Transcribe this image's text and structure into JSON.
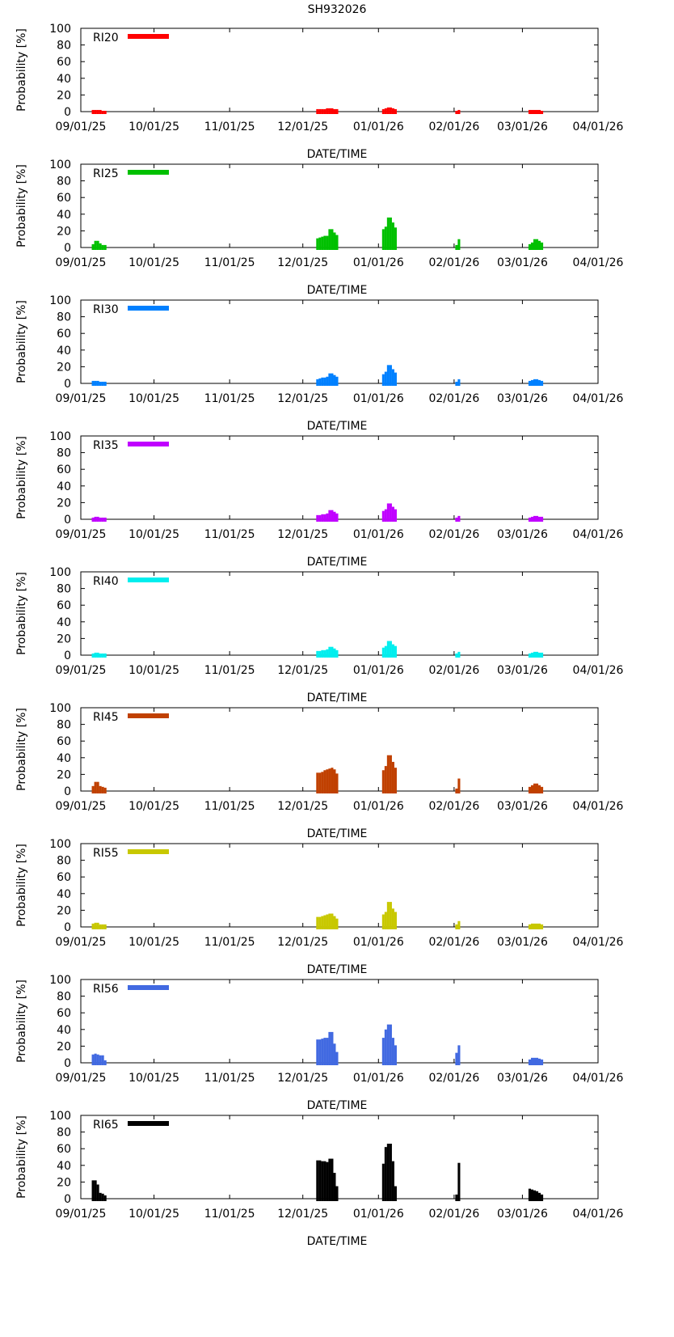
{
  "title": "SH932026",
  "chart_data": {
    "type": "bar",
    "ylabel": "Probability [%]",
    "xlabel": "DATE/TIME",
    "ylim": [
      0,
      100
    ],
    "yticks": [
      "0",
      "20",
      "40",
      "60",
      "80",
      "100"
    ],
    "x_start": "2025-09-01",
    "x_end": "2026-04-01",
    "xticks": [
      {
        "date": "2025-09-01",
        "label": "09/01/25"
      },
      {
        "date": "2025-10-01",
        "label": "10/01/25"
      },
      {
        "date": "2025-11-01",
        "label": "11/01/25"
      },
      {
        "date": "2025-12-01",
        "label": "12/01/25"
      },
      {
        "date": "2026-01-01",
        "label": "01/01/26"
      },
      {
        "date": "2026-02-01",
        "label": "02/01/26"
      },
      {
        "date": "2026-03-01",
        "label": "03/01/26"
      },
      {
        "date": "2026-04-01",
        "label": "04/01/26"
      }
    ],
    "days": [
      5,
      6,
      7,
      8,
      9,
      10,
      97,
      98,
      99,
      100,
      101,
      102,
      103,
      104,
      105,
      124,
      125,
      126,
      127,
      128,
      129,
      154,
      155,
      184,
      185,
      186,
      187,
      188,
      189
    ],
    "series": [
      {
        "name": "RI20",
        "color": "#ff0000",
        "values": [
          2,
          2,
          2,
          2,
          1,
          1,
          3,
          3,
          3,
          3,
          4,
          4,
          4,
          3,
          3,
          3,
          4,
          5,
          5,
          4,
          3,
          1,
          2,
          2,
          2,
          2,
          2,
          2,
          1
        ]
      },
      {
        "name": "RI25",
        "color": "#00c000",
        "values": [
          4,
          8,
          8,
          5,
          3,
          3,
          11,
          12,
          13,
          14,
          14,
          22,
          22,
          18,
          15,
          22,
          25,
          36,
          36,
          30,
          24,
          3,
          10,
          4,
          6,
          10,
          10,
          8,
          6
        ]
      },
      {
        "name": "RI30",
        "color": "#0080ff",
        "values": [
          3,
          3,
          3,
          2,
          2,
          2,
          5,
          6,
          7,
          7,
          8,
          12,
          12,
          10,
          8,
          11,
          14,
          22,
          22,
          17,
          13,
          2,
          5,
          3,
          4,
          5,
          5,
          4,
          3
        ]
      },
      {
        "name": "RI35",
        "color": "#c000ff",
        "values": [
          2,
          3,
          3,
          2,
          2,
          2,
          5,
          5,
          6,
          6,
          7,
          11,
          11,
          9,
          7,
          10,
          12,
          19,
          19,
          15,
          12,
          2,
          4,
          2,
          3,
          4,
          4,
          3,
          3
        ]
      },
      {
        "name": "RI40",
        "color": "#00eeee",
        "values": [
          2,
          3,
          3,
          2,
          2,
          2,
          5,
          5,
          6,
          6,
          7,
          10,
          10,
          8,
          6,
          9,
          11,
          17,
          17,
          13,
          11,
          2,
          4,
          2,
          3,
          4,
          4,
          3,
          3
        ]
      },
      {
        "name": "RI45",
        "color": "#c04000",
        "values": [
          6,
          11,
          11,
          6,
          5,
          4,
          22,
          22,
          23,
          25,
          26,
          27,
          28,
          26,
          21,
          25,
          30,
          43,
          43,
          35,
          28,
          3,
          15,
          5,
          7,
          9,
          9,
          7,
          5
        ]
      },
      {
        "name": "RI55",
        "color": "#c8c800",
        "values": [
          4,
          5,
          5,
          3,
          3,
          3,
          12,
          12,
          13,
          14,
          15,
          16,
          16,
          13,
          10,
          15,
          18,
          30,
          30,
          22,
          18,
          3,
          7,
          3,
          4,
          4,
          4,
          4,
          3
        ]
      },
      {
        "name": "RI56",
        "color": "#4169e1",
        "values": [
          10,
          11,
          10,
          9,
          9,
          3,
          28,
          28,
          29,
          30,
          30,
          37,
          37,
          23,
          13,
          30,
          40,
          46,
          46,
          30,
          21,
          12,
          21,
          4,
          6,
          6,
          6,
          5,
          4
        ]
      },
      {
        "name": "RI65",
        "color": "#000000",
        "values": [
          22,
          22,
          17,
          7,
          6,
          4,
          46,
          46,
          45,
          45,
          44,
          48,
          48,
          31,
          15,
          42,
          62,
          66,
          66,
          45,
          15,
          5,
          43,
          12,
          11,
          10,
          9,
          7,
          5
        ]
      }
    ]
  }
}
